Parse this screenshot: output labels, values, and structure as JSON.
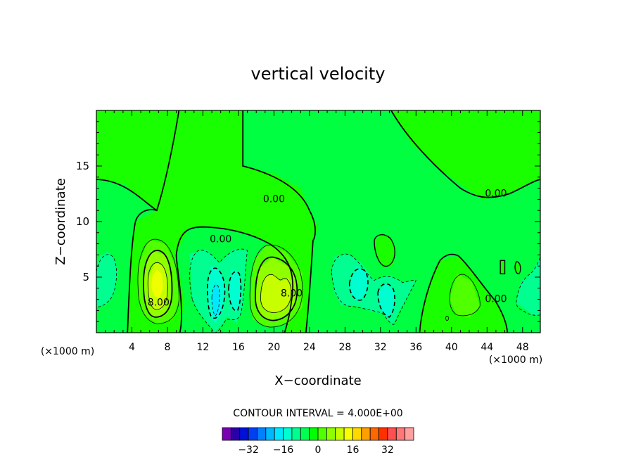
{
  "chart_data": {
    "type": "heatmap",
    "title": "vertical velocity",
    "xlabel": "X−coordinate",
    "ylabel": "Z−coordinate",
    "x_unit_label": "(×1000 m)",
    "y_unit_label": "(×1000 m)",
    "xlim": [
      0,
      50
    ],
    "ylim": [
      0,
      20
    ],
    "x_ticks": [
      4,
      8,
      12,
      16,
      20,
      24,
      28,
      32,
      36,
      40,
      44,
      48
    ],
    "x_tick_labels": [
      "4",
      "8",
      "12",
      "16",
      "20",
      "24",
      "28",
      "32",
      "36",
      "40",
      "44",
      "48"
    ],
    "y_ticks": [
      5,
      10,
      15
    ],
    "y_tick_labels": [
      "5",
      "10",
      "15"
    ],
    "contour_interval_text": "CONTOUR INTERVAL = 4.000E+00",
    "contour_interval": 4,
    "contour_labels": [
      {
        "text": "0.00",
        "x": 20,
        "y": 12
      },
      {
        "text": "0.00",
        "x": 14,
        "y": 8.4
      },
      {
        "text": "0.00",
        "x": 45,
        "y": 12.5
      },
      {
        "text": "0.00",
        "x": 45,
        "y": 3
      },
      {
        "text": "8.00",
        "x": 7,
        "y": 2.7
      },
      {
        "text": "8.00",
        "x": 22,
        "y": 3.5
      }
    ],
    "features": [
      {
        "type": "max",
        "x": 7.3,
        "y": 4.6,
        "value": 12
      },
      {
        "type": "max",
        "x": 20.3,
        "y": 4.0,
        "value": 12
      },
      {
        "type": "min",
        "x": 13.4,
        "y": 3.0,
        "value": -8
      },
      {
        "type": "min",
        "x": 15.6,
        "y": 3.8,
        "value": -8
      },
      {
        "type": "min",
        "x": 29.5,
        "y": 4.5,
        "value": -6
      },
      {
        "type": "min",
        "x": 32.8,
        "y": 3.0,
        "value": -6
      },
      {
        "type": "max",
        "x": 32.5,
        "y": 7.0,
        "value": 2
      },
      {
        "type": "max",
        "x": 41.5,
        "y": 4.2,
        "value": 5
      },
      {
        "type": "min",
        "x": 1.2,
        "y": 5.5,
        "value": -2
      },
      {
        "type": "min",
        "x": 48.7,
        "y": 3.7,
        "value": -3
      }
    ],
    "colorbar": {
      "colors": [
        "#7a00b4",
        "#2a00a8",
        "#0010d8",
        "#0040f0",
        "#0080ff",
        "#00b8ff",
        "#00e8ff",
        "#00ffd0",
        "#00ff90",
        "#00ff50",
        "#00ff00",
        "#50ff00",
        "#90ff00",
        "#c8ff00",
        "#f8ff00",
        "#ffd800",
        "#ffa000",
        "#ff6800",
        "#ff3000",
        "#ff5050",
        "#ff7878",
        "#ffa0a0"
      ],
      "tick_values": [
        -32,
        -16,
        0,
        16,
        32
      ],
      "tick_labels": [
        "−32",
        "−16",
        "0",
        "16",
        "32"
      ]
    }
  }
}
